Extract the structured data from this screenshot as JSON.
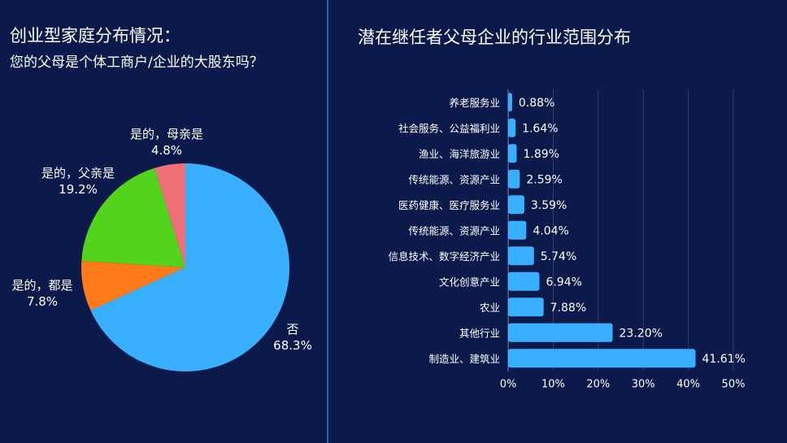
{
  "left": {
    "title": "创业型家庭分布情况：",
    "subtitle": "您的父母是个体工商户/企业的大股东吗？"
  },
  "right": {
    "title": "潜在继任者父母企业的行业范围分布"
  },
  "chart_data": [
    {
      "type": "pie",
      "title": "创业型家庭分布情况：",
      "subtitle": "您的父母是个体工商户/企业的大股东吗？",
      "slices": [
        {
          "label": "否",
          "value": 68.3,
          "value_label": "68.3%",
          "color": "#39b0ff"
        },
        {
          "label": "是的，都是",
          "value": 7.8,
          "value_label": "7.8%",
          "color": "#ff7a1a"
        },
        {
          "label": "是的，父亲是",
          "value": 19.2,
          "value_label": "19.2%",
          "color": "#52d41c"
        },
        {
          "label": "是的，母亲是",
          "value": 4.8,
          "value_label": "4.8%",
          "color": "#f0707a"
        }
      ]
    },
    {
      "type": "bar",
      "orientation": "horizontal",
      "title": "潜在继任者父母企业的行业范围分布",
      "color": "#39b0ff",
      "xlim": [
        0,
        50
      ],
      "xticks": [
        "0%",
        "10%",
        "20%",
        "30%",
        "40%",
        "50%"
      ],
      "grid": true,
      "categories": [
        "养老服务业",
        "社会服务、公益福利业",
        "渔业、海洋旅游业",
        "传统能源、资源产业",
        "医药健康、医疗服务业",
        "传统能源、资源产业",
        "信息技术、数字经济产业",
        "文化创意产业",
        "农业",
        "其他行业",
        "制造业、建筑业"
      ],
      "values": [
        0.88,
        1.64,
        1.89,
        2.59,
        3.59,
        4.04,
        5.74,
        6.94,
        7.88,
        23.2,
        41.61
      ],
      "value_labels": [
        "0.88%",
        "1.64%",
        "1.89%",
        "2.59%",
        "3.59%",
        "4.04%",
        "5.74%",
        "6.94%",
        "7.88%",
        "23.20%",
        "41.61%"
      ]
    }
  ]
}
